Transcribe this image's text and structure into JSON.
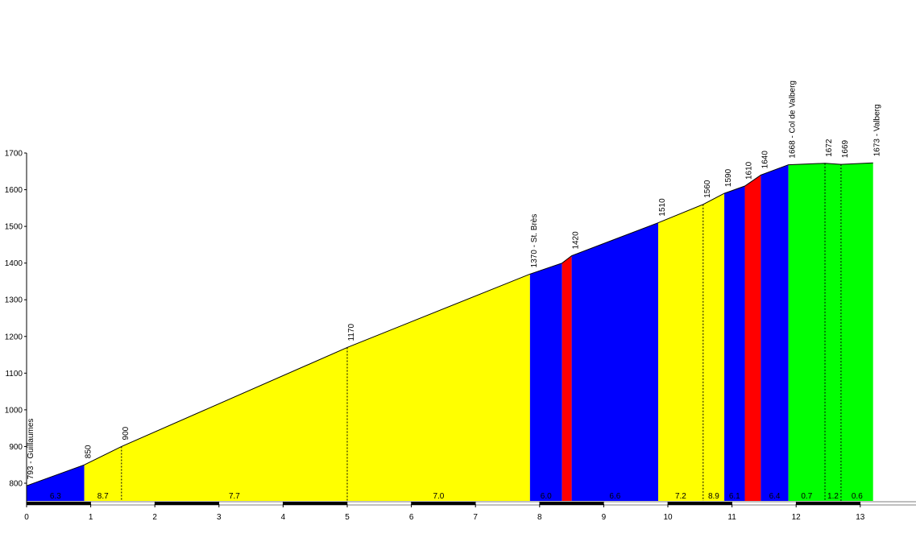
{
  "chart_data": {
    "type": "area",
    "title": "",
    "xlabel": "",
    "ylabel": "",
    "xlim": [
      0,
      13.8
    ],
    "ylim": [
      750,
      1700
    ],
    "x_ticks": [
      "0",
      "1",
      "2",
      "3",
      "4",
      "5",
      "6",
      "7",
      "8",
      "9",
      "10",
      "11",
      "12",
      "13"
    ],
    "y_ticks": [
      "800",
      "900",
      "1000",
      "1100",
      "1200",
      "1300",
      "1400",
      "1500",
      "1600",
      "1700"
    ],
    "profile": [
      {
        "x": 0.0,
        "y": 793
      },
      {
        "x": 0.9,
        "y": 850
      },
      {
        "x": 1.48,
        "y": 900
      },
      {
        "x": 5.0,
        "y": 1170
      },
      {
        "x": 7.85,
        "y": 1370
      },
      {
        "x": 8.35,
        "y": 1400
      },
      {
        "x": 8.5,
        "y": 1420
      },
      {
        "x": 9.85,
        "y": 1510
      },
      {
        "x": 10.55,
        "y": 1560
      },
      {
        "x": 10.88,
        "y": 1590
      },
      {
        "x": 11.2,
        "y": 1610
      },
      {
        "x": 11.45,
        "y": 1640
      },
      {
        "x": 11.88,
        "y": 1668
      },
      {
        "x": 12.45,
        "y": 1672
      },
      {
        "x": 12.7,
        "y": 1669
      },
      {
        "x": 13.2,
        "y": 1673
      }
    ],
    "segments": [
      {
        "x0": 0.0,
        "x1": 0.9,
        "color": "#0000ff",
        "grade": "6.3"
      },
      {
        "x0": 0.9,
        "x1": 1.48,
        "color": "#ffff00",
        "grade": "8.7"
      },
      {
        "x0": 1.48,
        "x1": 5.0,
        "color": "#ffff00",
        "grade": "7.7"
      },
      {
        "x0": 5.0,
        "x1": 7.85,
        "color": "#ffff00",
        "grade": "7.0"
      },
      {
        "x0": 7.85,
        "x1": 8.35,
        "color": "#0000ff",
        "grade": "6.0"
      },
      {
        "x0": 8.35,
        "x1": 8.5,
        "color": "#ff0000",
        "grade": ""
      },
      {
        "x0": 8.5,
        "x1": 9.85,
        "color": "#0000ff",
        "grade": "6.6"
      },
      {
        "x0": 9.85,
        "x1": 10.55,
        "color": "#ffff00",
        "grade": "7.2"
      },
      {
        "x0": 10.55,
        "x1": 10.88,
        "color": "#ffff00",
        "grade": "8.9"
      },
      {
        "x0": 10.88,
        "x1": 11.2,
        "color": "#0000ff",
        "grade": "6.1"
      },
      {
        "x0": 11.2,
        "x1": 11.45,
        "color": "#ff0000",
        "grade": ""
      },
      {
        "x0": 11.45,
        "x1": 11.88,
        "color": "#0000ff",
        "grade": "6.4"
      },
      {
        "x0": 11.88,
        "x1": 12.45,
        "color": "#00ff00",
        "grade": "0.7"
      },
      {
        "x0": 12.45,
        "x1": 12.7,
        "color": "#00ff00",
        "grade": "1.2"
      },
      {
        "x0": 12.7,
        "x1": 13.2,
        "color": "#00ff00",
        "grade": "0.6"
      }
    ],
    "annotations": [
      {
        "x": 0.0,
        "y": 793,
        "text": "793 - Guillaumes"
      },
      {
        "x": 0.9,
        "y": 850,
        "text": "850"
      },
      {
        "x": 1.48,
        "y": 900,
        "text": "900"
      },
      {
        "x": 5.0,
        "y": 1170,
        "text": "1170"
      },
      {
        "x": 7.85,
        "y": 1370,
        "text": "1370 - St. Brès"
      },
      {
        "x": 8.5,
        "y": 1420,
        "text": "1420"
      },
      {
        "x": 9.85,
        "y": 1510,
        "text": "1510"
      },
      {
        "x": 10.55,
        "y": 1560,
        "text": "1560"
      },
      {
        "x": 10.88,
        "y": 1590,
        "text": "1590"
      },
      {
        "x": 11.2,
        "y": 1610,
        "text": "1610"
      },
      {
        "x": 11.45,
        "y": 1640,
        "text": "1640"
      },
      {
        "x": 11.88,
        "y": 1668,
        "text": "1668 - Col de Valberg"
      },
      {
        "x": 12.45,
        "y": 1672,
        "text": "1672"
      },
      {
        "x": 12.7,
        "y": 1669,
        "text": "1669"
      },
      {
        "x": 13.2,
        "y": 1673,
        "text": "1673 - Valberg"
      }
    ],
    "grid": false,
    "legend": "none"
  }
}
